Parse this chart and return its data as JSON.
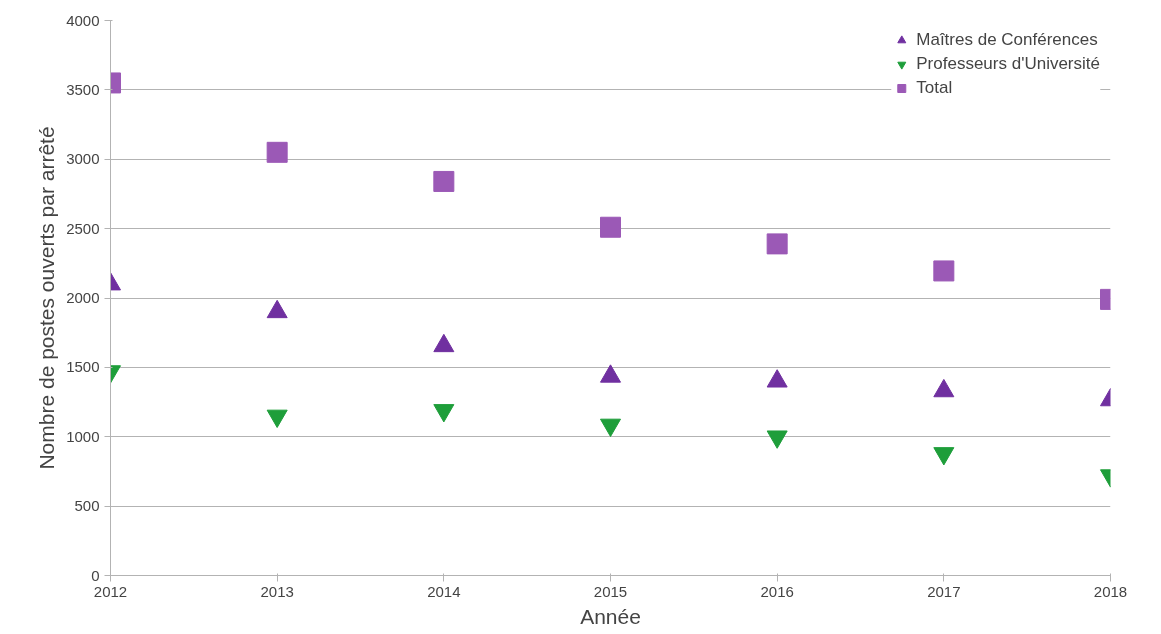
{
  "chart_data": {
    "type": "scatter",
    "xlabel": "Année",
    "ylabel": "Nombre de postes ouverts par arrêté",
    "x": [
      2012,
      2013,
      2014,
      2015,
      2016,
      2017,
      2018
    ],
    "xlim": [
      2012,
      2018
    ],
    "xticks": [
      2012,
      2013,
      2014,
      2015,
      2016,
      2017,
      2018
    ],
    "ylim": [
      0,
      4000
    ],
    "yticks": [
      0,
      500,
      1000,
      1500,
      2000,
      2500,
      3000,
      3500,
      4000
    ],
    "grid": "y",
    "legend": "top right",
    "series": [
      {
        "name": "Maîtres de Conférences",
        "color": "#7030a0",
        "marker": "triangle",
        "values": [
          2100,
          1900,
          1655,
          1435,
          1400,
          1330,
          1265
        ]
      },
      {
        "name": "Professeurs d'Université",
        "color": "#1e9e3a",
        "values": [
          1470,
          1150,
          1190,
          1085,
          1000,
          880,
          720
        ]
      },
      {
        "name": "Total",
        "color": "#9b59b6",
        "marker": "square",
        "values": [
          3550,
          3050,
          2840,
          2510,
          2390,
          2195,
          1990
        ]
      }
    ]
  }
}
